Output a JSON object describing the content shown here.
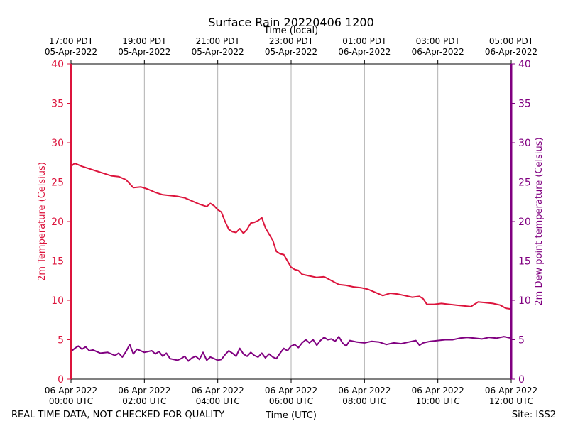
{
  "chart_data": {
    "type": "line",
    "title": "Surface Rain 20220406 1200",
    "top_axis_label": "Time (local)",
    "xlabel": "Time (UTC)",
    "ylabel_left": "2m Temperature (Celsius)",
    "ylabel_right": "2m Dew point temperature (Celsius)",
    "footer_left": "REAL TIME DATA, NOT CHECKED FOR QUALITY",
    "footer_right": "Site: ISS2",
    "x_range_hours": [
      0,
      12
    ],
    "ylim_left": [
      0,
      40
    ],
    "ylim_right": [
      0,
      40
    ],
    "yticks_left": [
      "0",
      "5",
      "10",
      "15",
      "20",
      "25",
      "30",
      "35",
      "40"
    ],
    "yticks_right": [
      "0",
      "5",
      "10",
      "15",
      "20",
      "25",
      "30",
      "35",
      "40"
    ],
    "bottom_ticks": [
      {
        "h": 0,
        "line1": "06-Apr-2022",
        "line2": "00:00 UTC"
      },
      {
        "h": 2,
        "line1": "06-Apr-2022",
        "line2": "02:00 UTC"
      },
      {
        "h": 4,
        "line1": "06-Apr-2022",
        "line2": "04:00 UTC"
      },
      {
        "h": 6,
        "line1": "06-Apr-2022",
        "line2": "06:00 UTC"
      },
      {
        "h": 8,
        "line1": "06-Apr-2022",
        "line2": "08:00 UTC"
      },
      {
        "h": 10,
        "line1": "06-Apr-2022",
        "line2": "10:00 UTC"
      },
      {
        "h": 12,
        "line1": "06-Apr-2022",
        "line2": "12:00 UTC"
      }
    ],
    "top_ticks": [
      {
        "h": 0,
        "line1": "17:00 PDT",
        "line2": "05-Apr-2022"
      },
      {
        "h": 2,
        "line1": "19:00 PDT",
        "line2": "05-Apr-2022"
      },
      {
        "h": 4,
        "line1": "21:00 PDT",
        "line2": "05-Apr-2022"
      },
      {
        "h": 6,
        "line1": "23:00 PDT",
        "line2": "05-Apr-2022"
      },
      {
        "h": 8,
        "line1": "01:00 PDT",
        "line2": "06-Apr-2022"
      },
      {
        "h": 10,
        "line1": "03:00 PDT",
        "line2": "06-Apr-2022"
      },
      {
        "h": 12,
        "line1": "05:00 PDT",
        "line2": "06-Apr-2022"
      }
    ],
    "grid": "vertical",
    "series": [
      {
        "axis": "left",
        "color": "#dc143c",
        "x": [
          0,
          0.1,
          0.3,
          0.5,
          0.7,
          0.9,
          1.1,
          1.3,
          1.5,
          1.7,
          1.9,
          2.1,
          2.3,
          2.5,
          2.7,
          2.9,
          3.1,
          3.3,
          3.5,
          3.7,
          3.8,
          3.9,
          4.0,
          4.1,
          4.2,
          4.3,
          4.4,
          4.5,
          4.6,
          4.7,
          4.8,
          4.9,
          5.0,
          5.1,
          5.2,
          5.3,
          5.4,
          5.5,
          5.6,
          5.7,
          5.8,
          5.9,
          6.0,
          6.1,
          6.2,
          6.3,
          6.5,
          6.7,
          6.9,
          7.1,
          7.3,
          7.5,
          7.7,
          7.9,
          8.1,
          8.3,
          8.5,
          8.7,
          8.9,
          9.1,
          9.3,
          9.5,
          9.6,
          9.7,
          9.9,
          10.1,
          10.3,
          10.5,
          10.7,
          10.9,
          11.1,
          11.3,
          11.5,
          11.7,
          11.85,
          12.0
        ],
        "y": [
          27.0,
          27.4,
          27.0,
          26.7,
          26.4,
          26.1,
          25.8,
          25.7,
          25.3,
          24.3,
          24.4,
          24.1,
          23.7,
          23.4,
          23.3,
          23.2,
          23.0,
          22.6,
          22.2,
          21.9,
          22.3,
          22.0,
          21.5,
          21.2,
          20.0,
          19.0,
          18.7,
          18.6,
          19.1,
          18.5,
          19.0,
          19.8,
          19.9,
          20.1,
          20.5,
          19.2,
          18.4,
          17.6,
          16.2,
          15.9,
          15.8,
          15.0,
          14.2,
          13.9,
          13.8,
          13.3,
          13.1,
          12.9,
          13.0,
          12.5,
          12.0,
          11.9,
          11.7,
          11.6,
          11.4,
          11.0,
          10.6,
          10.9,
          10.8,
          10.6,
          10.4,
          10.5,
          10.2,
          9.5,
          9.5,
          9.6,
          9.5,
          9.4,
          9.3,
          9.2,
          9.8,
          9.7,
          9.6,
          9.4,
          9.0,
          8.9
        ]
      },
      {
        "axis": "right",
        "color": "#800080",
        "x": [
          0,
          0.1,
          0.2,
          0.3,
          0.4,
          0.5,
          0.6,
          0.8,
          1.0,
          1.2,
          1.3,
          1.4,
          1.5,
          1.6,
          1.7,
          1.8,
          2.0,
          2.2,
          2.3,
          2.4,
          2.5,
          2.6,
          2.7,
          2.8,
          2.9,
          3.0,
          3.1,
          3.2,
          3.3,
          3.4,
          3.5,
          3.6,
          3.7,
          3.8,
          3.9,
          4.0,
          4.1,
          4.2,
          4.3,
          4.4,
          4.5,
          4.6,
          4.7,
          4.8,
          4.9,
          5.0,
          5.1,
          5.2,
          5.3,
          5.4,
          5.5,
          5.6,
          5.7,
          5.8,
          5.9,
          6.0,
          6.1,
          6.2,
          6.3,
          6.4,
          6.5,
          6.6,
          6.7,
          6.8,
          6.9,
          7.0,
          7.1,
          7.2,
          7.3,
          7.4,
          7.5,
          7.6,
          7.8,
          8.0,
          8.2,
          8.4,
          8.6,
          8.8,
          9.0,
          9.2,
          9.4,
          9.5,
          9.6,
          9.8,
          10.0,
          10.2,
          10.4,
          10.6,
          10.8,
          11.0,
          11.2,
          11.4,
          11.6,
          11.8,
          12.0
        ],
        "y": [
          3.5,
          3.9,
          4.2,
          3.8,
          4.1,
          3.6,
          3.7,
          3.3,
          3.4,
          3.0,
          3.3,
          2.8,
          3.5,
          4.4,
          3.2,
          3.8,
          3.4,
          3.6,
          3.2,
          3.5,
          2.9,
          3.3,
          2.6,
          2.5,
          2.4,
          2.6,
          2.9,
          2.3,
          2.7,
          2.9,
          2.5,
          3.4,
          2.4,
          2.8,
          2.6,
          2.4,
          2.5,
          3.1,
          3.6,
          3.3,
          2.9,
          3.9,
          3.2,
          2.9,
          3.4,
          3.0,
          2.8,
          3.3,
          2.7,
          3.2,
          2.8,
          2.6,
          3.3,
          3.9,
          3.6,
          4.2,
          4.4,
          4.0,
          4.6,
          5.0,
          4.6,
          5.0,
          4.3,
          4.9,
          5.3,
          5.0,
          5.1,
          4.8,
          5.4,
          4.6,
          4.2,
          4.9,
          4.7,
          4.6,
          4.8,
          4.7,
          4.4,
          4.6,
          4.5,
          4.7,
          4.9,
          4.3,
          4.6,
          4.8,
          4.9,
          5.0,
          5.0,
          5.2,
          5.3,
          5.2,
          5.1,
          5.3,
          5.2,
          5.4,
          5.2
        ]
      }
    ]
  }
}
